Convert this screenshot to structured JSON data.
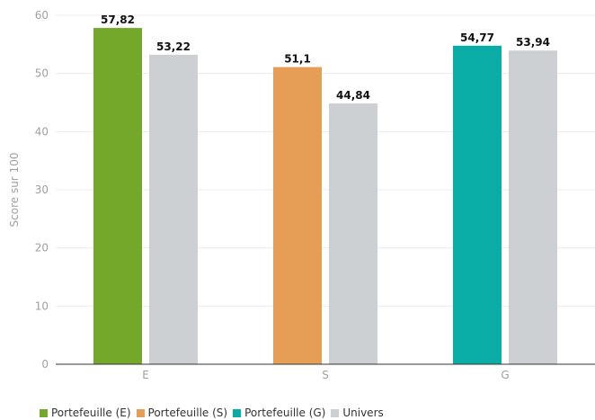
{
  "chart_data": {
    "type": "bar",
    "categories": [
      "E",
      "S",
      "G"
    ],
    "ylabel": "Score sur 100",
    "ylim": [
      0,
      60
    ],
    "yticks": [
      0,
      10,
      20,
      30,
      40,
      50,
      60
    ],
    "grid": true,
    "legend_position": "bottom-left",
    "bars": [
      {
        "category": "E",
        "series": "Portefeuille (E)",
        "value": 57.82,
        "label": "57,82",
        "color": "#73a82a"
      },
      {
        "category": "E",
        "series": "Univers",
        "value": 53.22,
        "label": "53,22",
        "color": "#cdd0d2"
      },
      {
        "category": "S",
        "series": "Portefeuille (S)",
        "value": 51.1,
        "label": "51,1",
        "color": "#e69d55"
      },
      {
        "category": "S",
        "series": "Univers",
        "value": 44.84,
        "label": "44,84",
        "color": "#cdd0d2"
      },
      {
        "category": "G",
        "series": "Portefeuille (G)",
        "value": 54.77,
        "label": "54,77",
        "color": "#0aada6"
      },
      {
        "category": "G",
        "series": "Univers",
        "value": 53.94,
        "label": "53,94",
        "color": "#cdd0d2"
      }
    ],
    "legend": [
      {
        "name": "Portefeuille (E)",
        "color": "#73a82a"
      },
      {
        "name": "Portefeuille (S)",
        "color": "#e69d55"
      },
      {
        "name": "Portefeuille (G)",
        "color": "#0aada6"
      },
      {
        "name": "Univers",
        "color": "#cdd0d2"
      }
    ]
  }
}
